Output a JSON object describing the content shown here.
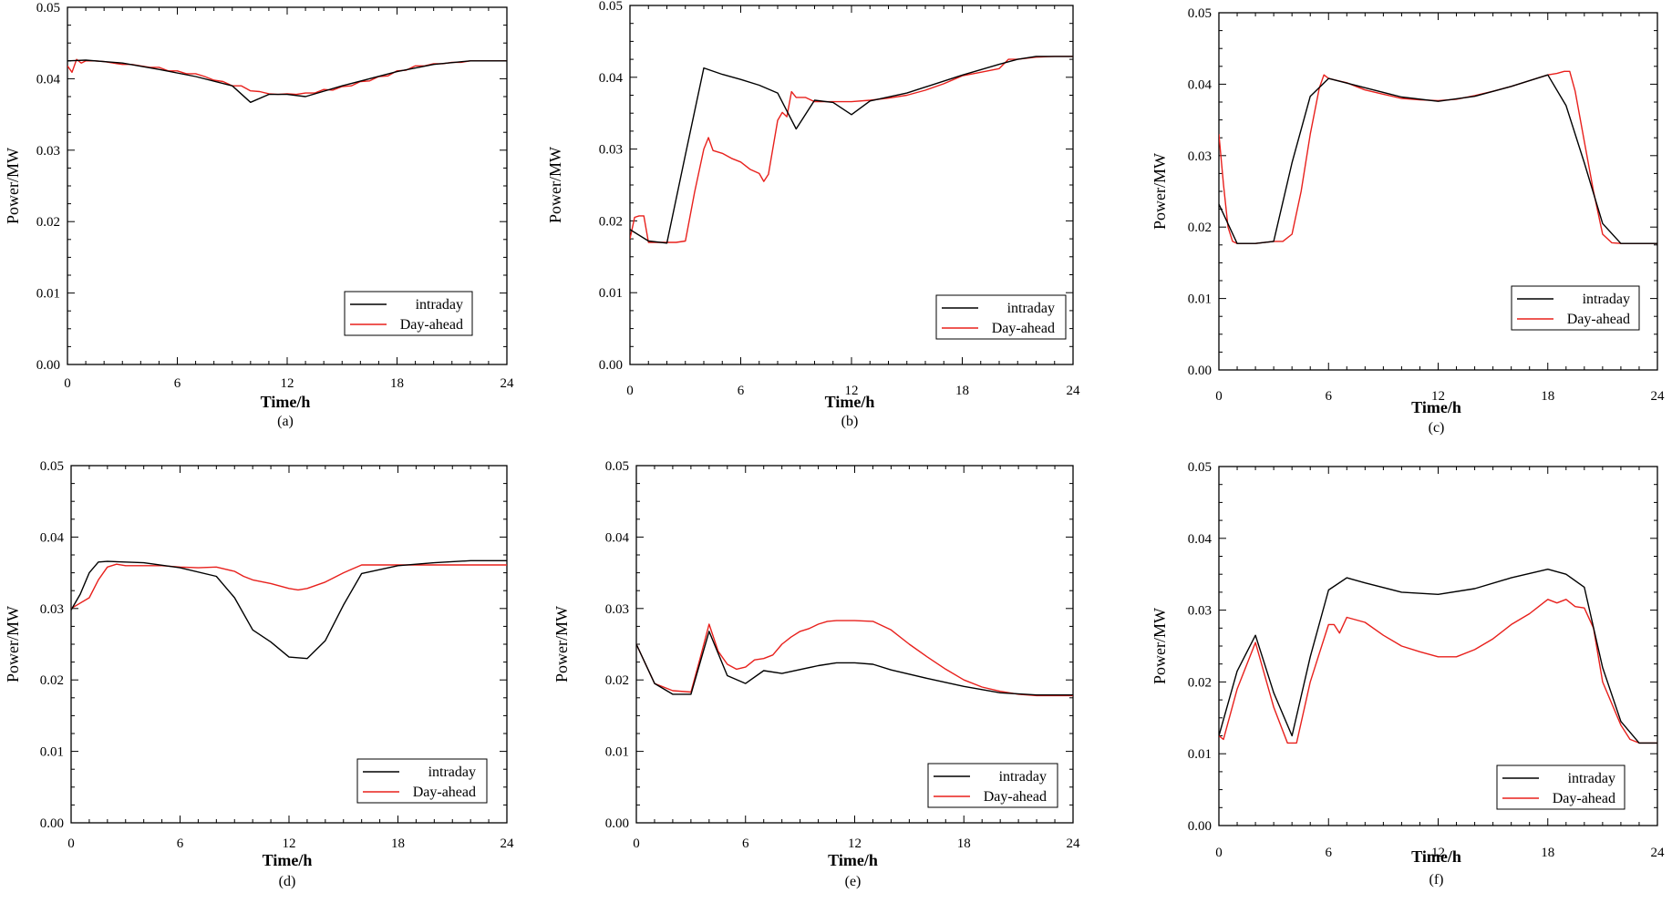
{
  "colors": {
    "intraday": "#000000",
    "day_ahead": "#e8201c",
    "axis": "#000000"
  },
  "chart_data": [
    {
      "type": "line",
      "panel_label": "(a)",
      "xlabel": "Time/h",
      "ylabel": "Power/MW",
      "xlim": [
        0,
        24
      ],
      "ylim": [
        0,
        0.05
      ],
      "xticks": [
        "0",
        "6",
        "12",
        "18",
        "24"
      ],
      "yticks": [
        "0.00",
        "0.01",
        "0.02",
        "0.03",
        "0.04",
        "0.05"
      ],
      "grid": false,
      "legend": "bottom-right",
      "series": [
        {
          "name": "intraday",
          "color": "#000000",
          "x": [
            0,
            1,
            3,
            5,
            7,
            9,
            10,
            11,
            12,
            13,
            15,
            18,
            20,
            22,
            24
          ],
          "y": [
            0.0425,
            0.0426,
            0.0422,
            0.0413,
            0.0403,
            0.039,
            0.0367,
            0.0378,
            0.0378,
            0.0375,
            0.039,
            0.041,
            0.042,
            0.0425,
            0.0425
          ]
        },
        {
          "name": "Day-ahead",
          "color": "#e8201c",
          "x": [
            0,
            0.25,
            0.5,
            0.75,
            1,
            1.5,
            2,
            2.5,
            3,
            3.5,
            4,
            4.5,
            5,
            5.5,
            6,
            6.5,
            7,
            7.5,
            8,
            8.5,
            9,
            9.5,
            10,
            10.5,
            11,
            11.5,
            12,
            12.5,
            13,
            13.5,
            14,
            14.5,
            15,
            15.5,
            16,
            16.5,
            17,
            17.5,
            18,
            18.5,
            19,
            19.5,
            20,
            20.5,
            21,
            21.5,
            22,
            22.5,
            23,
            23.5,
            24
          ],
          "y": [
            0.0418,
            0.0409,
            0.0427,
            0.0422,
            0.0425,
            0.0425,
            0.0424,
            0.0422,
            0.042,
            0.042,
            0.0418,
            0.0416,
            0.0416,
            0.0411,
            0.0411,
            0.0407,
            0.0407,
            0.0403,
            0.0398,
            0.0396,
            0.039,
            0.039,
            0.0383,
            0.0382,
            0.0379,
            0.0378,
            0.0379,
            0.0378,
            0.038,
            0.038,
            0.0385,
            0.0384,
            0.0389,
            0.039,
            0.0396,
            0.0397,
            0.0403,
            0.0404,
            0.0411,
            0.0412,
            0.0418,
            0.0418,
            0.0421,
            0.0421,
            0.0423,
            0.0423,
            0.0425,
            0.0425,
            0.0425,
            0.0425,
            0.0425
          ]
        }
      ]
    },
    {
      "type": "line",
      "panel_label": "(b)",
      "xlabel": "Time/h",
      "ylabel": "Power/MW",
      "xlim": [
        0,
        24
      ],
      "ylim": [
        0,
        0.05
      ],
      "xticks": [
        "0",
        "6",
        "12",
        "18",
        "24"
      ],
      "yticks": [
        "0.00",
        "0.01",
        "0.02",
        "0.03",
        "0.04",
        "0.05"
      ],
      "grid": false,
      "legend": "bottom-right",
      "series": [
        {
          "name": "intraday",
          "color": "#000000",
          "x": [
            0,
            1,
            2,
            3,
            4,
            5,
            6,
            7,
            8,
            9,
            10,
            11,
            12,
            13,
            15,
            18,
            20,
            21,
            22,
            24
          ],
          "y": [
            0.0188,
            0.0172,
            0.0169,
            0.0292,
            0.0413,
            0.0404,
            0.0397,
            0.0389,
            0.0378,
            0.0328,
            0.0368,
            0.0365,
            0.0348,
            0.0367,
            0.0378,
            0.0403,
            0.0418,
            0.0425,
            0.0429,
            0.0429
          ]
        },
        {
          "name": "Day-ahead",
          "color": "#e8201c",
          "x": [
            0,
            0.25,
            0.5,
            0.75,
            1,
            1.5,
            2,
            2.5,
            3,
            3.5,
            4,
            4.25,
            4.5,
            5,
            5.5,
            6,
            6.5,
            7,
            7.25,
            7.5,
            8,
            8.25,
            8.5,
            8.75,
            9,
            9.5,
            10,
            11,
            12,
            13,
            14,
            15,
            16,
            17,
            18,
            19,
            20,
            20.5,
            21,
            22,
            23,
            24
          ],
          "y": [
            0.0175,
            0.0205,
            0.0207,
            0.0207,
            0.017,
            0.017,
            0.017,
            0.017,
            0.0172,
            0.024,
            0.03,
            0.0316,
            0.0298,
            0.0294,
            0.0287,
            0.0282,
            0.0272,
            0.0266,
            0.0255,
            0.0265,
            0.034,
            0.0351,
            0.0345,
            0.038,
            0.0372,
            0.0372,
            0.0366,
            0.0366,
            0.0366,
            0.0368,
            0.0371,
            0.0375,
            0.0382,
            0.0391,
            0.0402,
            0.0407,
            0.0412,
            0.0425,
            0.0425,
            0.0428,
            0.0429,
            0.0429
          ]
        }
      ]
    },
    {
      "type": "line",
      "panel_label": "(c)",
      "xlabel": "Time/h",
      "ylabel": "Power/MW",
      "xlim": [
        0,
        24
      ],
      "ylim": [
        0,
        0.05
      ],
      "xticks": [
        "0",
        "6",
        "12",
        "18",
        "24"
      ],
      "yticks": [
        "0.00",
        "0.01",
        "0.02",
        "0.03",
        "0.04",
        "0.05"
      ],
      "grid": false,
      "legend": "bottom-right",
      "series": [
        {
          "name": "intraday",
          "color": "#000000",
          "x": [
            0,
            1,
            2,
            3,
            4,
            5,
            6,
            8,
            10,
            12,
            14,
            16,
            18,
            19,
            20,
            21,
            22,
            24
          ],
          "y": [
            0.0232,
            0.0177,
            0.0177,
            0.018,
            0.029,
            0.0383,
            0.0408,
            0.0395,
            0.0382,
            0.0376,
            0.0383,
            0.0397,
            0.0413,
            0.037,
            0.029,
            0.0205,
            0.0177,
            0.0177
          ]
        },
        {
          "name": "Day-ahead",
          "color": "#e8201c",
          "x": [
            0,
            0.25,
            0.5,
            0.75,
            1,
            2,
            3,
            3.5,
            4,
            4.5,
            5,
            5.5,
            5.75,
            6,
            6.5,
            7,
            7.5,
            8,
            9,
            10,
            11,
            12,
            13,
            14,
            15,
            16,
            17,
            18,
            18.5,
            18.9,
            19.2,
            19.5,
            20,
            20.5,
            21,
            21.5,
            22,
            24
          ],
          "y": [
            0.033,
            0.026,
            0.02,
            0.018,
            0.0177,
            0.0177,
            0.018,
            0.018,
            0.019,
            0.025,
            0.033,
            0.0395,
            0.0413,
            0.0408,
            0.0405,
            0.0402,
            0.0397,
            0.0392,
            0.0386,
            0.038,
            0.0378,
            0.0377,
            0.0379,
            0.0384,
            0.039,
            0.0397,
            0.0405,
            0.0413,
            0.0415,
            0.0418,
            0.0418,
            0.039,
            0.032,
            0.025,
            0.019,
            0.0178,
            0.0177,
            0.0177
          ]
        }
      ]
    },
    {
      "type": "line",
      "panel_label": "(d)",
      "xlabel": "Time/h",
      "ylabel": "Power/MW",
      "xlim": [
        0,
        24
      ],
      "ylim": [
        0,
        0.05
      ],
      "xticks": [
        "0",
        "6",
        "12",
        "18",
        "24"
      ],
      "yticks": [
        "0.00",
        "0.01",
        "0.02",
        "0.03",
        "0.04",
        "0.05"
      ],
      "grid": false,
      "legend": "bottom-right",
      "series": [
        {
          "name": "intraday",
          "color": "#000000",
          "x": [
            0,
            0.5,
            1,
            1.5,
            2,
            4,
            6,
            8,
            9,
            10,
            11,
            12,
            13,
            14,
            15,
            16,
            18,
            20,
            22,
            24
          ],
          "y": [
            0.0298,
            0.032,
            0.035,
            0.0365,
            0.0366,
            0.0364,
            0.0357,
            0.0345,
            0.0315,
            0.027,
            0.0253,
            0.0232,
            0.023,
            0.0255,
            0.0305,
            0.0349,
            0.036,
            0.0364,
            0.0367,
            0.0367
          ]
        },
        {
          "name": "Day-ahead",
          "color": "#e8201c",
          "x": [
            0,
            1,
            1.5,
            2,
            2.5,
            3,
            4,
            5,
            6,
            7,
            8,
            8.5,
            9,
            9.5,
            10,
            11,
            12,
            12.5,
            13,
            14,
            15,
            16,
            18,
            20,
            22,
            24
          ],
          "y": [
            0.03,
            0.0315,
            0.034,
            0.0358,
            0.0362,
            0.036,
            0.036,
            0.036,
            0.0358,
            0.0357,
            0.0358,
            0.0355,
            0.0352,
            0.0345,
            0.034,
            0.0335,
            0.0328,
            0.0326,
            0.0328,
            0.0337,
            0.035,
            0.0361,
            0.0361,
            0.0361,
            0.0361,
            0.0361
          ]
        }
      ]
    },
    {
      "type": "line",
      "panel_label": "(e)",
      "xlabel": "Time/h",
      "ylabel": "Power/MW",
      "xlim": [
        0,
        24
      ],
      "ylim": [
        0,
        0.05
      ],
      "xticks": [
        "0",
        "6",
        "12",
        "18",
        "24"
      ],
      "yticks": [
        "0.00",
        "0.01",
        "0.02",
        "0.03",
        "0.04",
        "0.05"
      ],
      "grid": false,
      "legend": "bottom-right",
      "series": [
        {
          "name": "intraday",
          "color": "#000000",
          "x": [
            0,
            1,
            2,
            3,
            4,
            5,
            6,
            7,
            8,
            10,
            11,
            12,
            13,
            14,
            16,
            18,
            20,
            22,
            24
          ],
          "y": [
            0.025,
            0.0195,
            0.018,
            0.018,
            0.0268,
            0.0206,
            0.0195,
            0.0213,
            0.0209,
            0.022,
            0.0224,
            0.0224,
            0.0222,
            0.0214,
            0.0202,
            0.0191,
            0.0182,
            0.0179,
            0.0179
          ]
        },
        {
          "name": "Day-ahead",
          "color": "#e8201c",
          "x": [
            0,
            1,
            2,
            3,
            3.5,
            4,
            4.5,
            5,
            5.5,
            6,
            6.5,
            7,
            7.5,
            8,
            8.5,
            9,
            9.5,
            10,
            10.5,
            11,
            12,
            13,
            14,
            15,
            16,
            17,
            18,
            19,
            20,
            21,
            22,
            24
          ],
          "y": [
            0.025,
            0.0195,
            0.0185,
            0.0183,
            0.023,
            0.0278,
            0.024,
            0.0222,
            0.0215,
            0.0218,
            0.0228,
            0.023,
            0.0235,
            0.025,
            0.026,
            0.0268,
            0.0272,
            0.0278,
            0.0282,
            0.0283,
            0.0283,
            0.0282,
            0.027,
            0.025,
            0.0232,
            0.0215,
            0.02,
            0.019,
            0.0184,
            0.018,
            0.0178,
            0.0178
          ]
        }
      ]
    },
    {
      "type": "line",
      "panel_label": "(f)",
      "xlabel": "Time/h",
      "ylabel": "Power/MW",
      "xlim": [
        0,
        24
      ],
      "ylim": [
        0,
        0.05
      ],
      "xticks": [
        "0",
        "6",
        "12",
        "18",
        "24"
      ],
      "yticks": [
        "0.00",
        "0.01",
        "0.02",
        "0.03",
        "0.04",
        "0.05"
      ],
      "grid": false,
      "legend": "bottom-right",
      "series": [
        {
          "name": "intraday",
          "color": "#000000",
          "x": [
            0,
            1,
            2,
            3,
            4,
            5,
            6,
            7,
            8,
            10,
            12,
            14,
            16,
            18,
            19,
            20,
            21,
            22,
            23,
            24
          ],
          "y": [
            0.0125,
            0.0215,
            0.0265,
            0.0185,
            0.0125,
            0.0235,
            0.0328,
            0.0345,
            0.0338,
            0.0325,
            0.0322,
            0.033,
            0.0345,
            0.0357,
            0.035,
            0.0332,
            0.022,
            0.0145,
            0.0115,
            0.0115
          ]
        },
        {
          "name": "Day-ahead",
          "color": "#e8201c",
          "x": [
            0,
            0.25,
            1,
            2,
            3,
            3.75,
            4.25,
            5,
            5.5,
            6,
            6.3,
            6.6,
            7,
            8,
            9,
            10,
            11,
            12,
            13,
            14,
            15,
            16,
            17,
            17.5,
            18,
            18.5,
            19,
            19.5,
            20,
            20.5,
            21,
            22,
            22.5,
            23,
            24
          ],
          "y": [
            0.0125,
            0.012,
            0.019,
            0.0255,
            0.0165,
            0.0115,
            0.0115,
            0.02,
            0.024,
            0.028,
            0.028,
            0.0268,
            0.029,
            0.0283,
            0.0265,
            0.025,
            0.0242,
            0.0235,
            0.0235,
            0.0245,
            0.026,
            0.028,
            0.0295,
            0.0305,
            0.0315,
            0.031,
            0.0315,
            0.0305,
            0.0303,
            0.0275,
            0.02,
            0.014,
            0.012,
            0.0115,
            0.0115
          ]
        }
      ]
    }
  ]
}
